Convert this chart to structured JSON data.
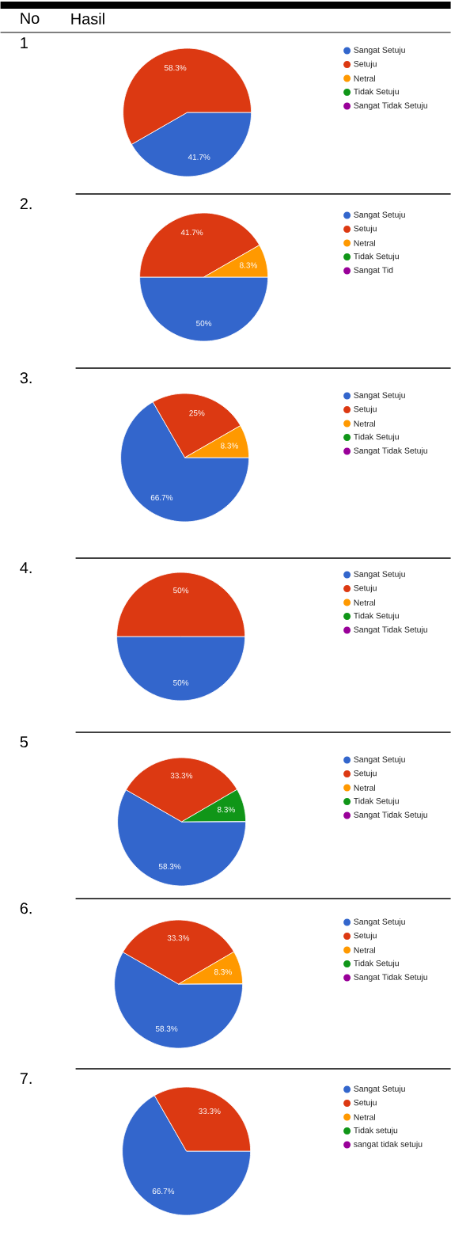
{
  "chart_data": [
    {
      "type": "pie",
      "title": "1",
      "annotations": [
        "No",
        "Hasil"
      ],
      "categories": [
        "Sangat Setuju",
        "Setuju",
        "Netral",
        "Tidak Setuju",
        "Sangat Tidak Setuju"
      ],
      "values": [
        41.7,
        58.3,
        0,
        0,
        0
      ],
      "colors": [
        "#3366cc",
        "#dc3912",
        "#ff9900",
        "#109618",
        "#990099"
      ],
      "value_labels": [
        "41.7%",
        "58.3%",
        null,
        null,
        null
      ],
      "legend": "right"
    },
    {
      "type": "pie",
      "title": "2.",
      "categories": [
        "Sangat Setuju",
        "Setuju",
        "Netral",
        "Tidak Setuju",
        "Sangat Tid"
      ],
      "values": [
        50,
        41.7,
        8.3,
        0,
        0
      ],
      "colors": [
        "#3366cc",
        "#dc3912",
        "#ff9900",
        "#109618",
        "#990099"
      ],
      "value_labels": [
        "50%",
        "41.7%",
        "8.3%",
        null,
        null
      ],
      "legend": "right"
    },
    {
      "type": "pie",
      "title": "3.",
      "categories": [
        "Sangat Setuju",
        "Setuju",
        "Netral",
        "Tidak Setuju",
        "Sangat Tidak Setuju"
      ],
      "values": [
        66.7,
        25,
        8.3,
        0,
        0
      ],
      "colors": [
        "#3366cc",
        "#dc3912",
        "#ff9900",
        "#109618",
        "#990099"
      ],
      "value_labels": [
        "66.7%",
        "25%",
        "8.3%",
        null,
        null
      ],
      "legend": "right"
    },
    {
      "type": "pie",
      "title": "4.",
      "categories": [
        "Sangat Setuju",
        "Setuju",
        "Netral",
        "Tidak Setuju",
        "Sangat Tidak Setuju"
      ],
      "values": [
        50,
        50,
        0,
        0,
        0
      ],
      "colors": [
        "#3366cc",
        "#dc3912",
        "#ff9900",
        "#109618",
        "#990099"
      ],
      "value_labels": [
        "50%",
        "50%",
        null,
        null,
        null
      ],
      "legend": "right"
    },
    {
      "type": "pie",
      "title": "5",
      "categories": [
        "Sangat Setuju",
        "Setuju",
        "Netral",
        "Tidak Setuju",
        "Sangat Tidak Setuju"
      ],
      "values": [
        58.3,
        33.3,
        0,
        8.3,
        0
      ],
      "colors": [
        "#3366cc",
        "#dc3912",
        "#ff9900",
        "#109618",
        "#990099"
      ],
      "value_labels": [
        "58.3%",
        "33.3%",
        null,
        "8.3%",
        null
      ],
      "legend": "right"
    },
    {
      "type": "pie",
      "title": "6.",
      "categories": [
        "Sangat Setuju",
        "Setuju",
        "Netral",
        "Tidak Setuju",
        "Sangat Tidak Setuju"
      ],
      "values": [
        58.3,
        33.3,
        8.3,
        0,
        0
      ],
      "colors": [
        "#3366cc",
        "#dc3912",
        "#ff9900",
        "#109618",
        "#990099"
      ],
      "value_labels": [
        "58.3%",
        "33.3%",
        "8.3%",
        null,
        null
      ],
      "legend": "right"
    },
    {
      "type": "pie",
      "title": "7.",
      "categories": [
        "Sangat Setuju",
        "Setuju",
        "Netral",
        "Tidak setuju",
        "sangat tidak setuju"
      ],
      "values": [
        66.7,
        33.3,
        0,
        0,
        0
      ],
      "colors": [
        "#3366cc",
        "#dc3912",
        "#ff9900",
        "#109618",
        "#990099"
      ],
      "value_labels": [
        "66.7%",
        "33.3%",
        null,
        null,
        null
      ],
      "legend": "right"
    }
  ]
}
